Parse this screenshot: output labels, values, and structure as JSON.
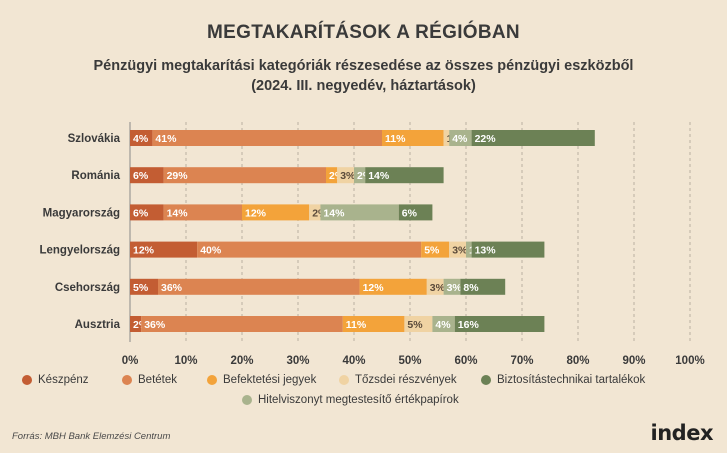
{
  "title": "MEGTAKARÍTÁSOK A RÉGIÓBAN",
  "subtitle_line1": "Pénzügyi megtakarítási kategóriák részesedése az összes pénzügyi eszközből",
  "subtitle_line2": "(2024. III. negyedév, háztartások)",
  "source": "Forrás: MBH Bank Elemzési Centrum",
  "logo": "index",
  "colors": {
    "Készpénz": "#c35d33",
    "Betétek": "#dc8451",
    "Befektetési jegyek": "#f3a33a",
    "Tőzsdei részvények": "#f0d3a3",
    "Biztosítástechnikai tartalékok": "#6c8155",
    "Hitelviszonyt megtestesítő értékpapírok": "#a9b38d"
  },
  "chart_data": {
    "type": "bar",
    "orientation": "horizontal",
    "stacked": true,
    "categories": [
      "Szlovákia",
      "Románia",
      "Magyarország",
      "Lengyelország",
      "Csehország",
      "Ausztria"
    ],
    "series": [
      {
        "name": "Készpénz",
        "values": [
          4,
          6,
          6,
          12,
          5,
          2
        ],
        "labels": [
          "4%",
          "6%",
          "6%",
          "12%",
          "5%",
          "2%"
        ]
      },
      {
        "name": "Betétek",
        "values": [
          41,
          29,
          14,
          40,
          36,
          36
        ],
        "labels": [
          "41%",
          "29%",
          "14%",
          "40%",
          "36%",
          "36%"
        ]
      },
      {
        "name": "Befektetési jegyek",
        "values": [
          11,
          2,
          12,
          5,
          12,
          11
        ],
        "labels": [
          "11%",
          "2%",
          "12%",
          "5%",
          "12%",
          "11%"
        ]
      },
      {
        "name": "Tőzsdei részvények",
        "values": [
          1,
          3,
          2,
          3,
          3,
          5
        ],
        "labels": [
          "1%",
          "3%",
          "2%",
          "3%",
          "3%",
          "5%"
        ]
      },
      {
        "name": "Hitelviszonyt megtestesítő értékpapírok",
        "values": [
          4,
          2,
          14,
          1,
          3,
          4
        ],
        "labels": [
          "4%",
          "2%",
          "14%",
          "1%",
          "3%",
          "4%"
        ]
      },
      {
        "name": "Biztosítástechnikai tartalékok",
        "values": [
          22,
          14,
          6,
          13,
          8,
          16
        ],
        "labels": [
          "22%",
          "14%",
          "6%",
          "13%",
          "8%",
          "16%"
        ]
      }
    ],
    "xlim": [
      0,
      100
    ],
    "x_ticks": [
      "0%",
      "10%",
      "20%",
      "30%",
      "40%",
      "50%",
      "60%",
      "70%",
      "80%",
      "90%",
      "100%"
    ],
    "grid": "vertical dashed",
    "legend_position": "bottom",
    "legend_rows": [
      [
        "Készpénz",
        "Betétek",
        "Befektetési jegyek",
        "Tőzsdei részvények",
        "Biztosítástechnikai tartalékok"
      ],
      [
        "Hitelviszonyt megtestesítő értékpapírok"
      ]
    ]
  }
}
